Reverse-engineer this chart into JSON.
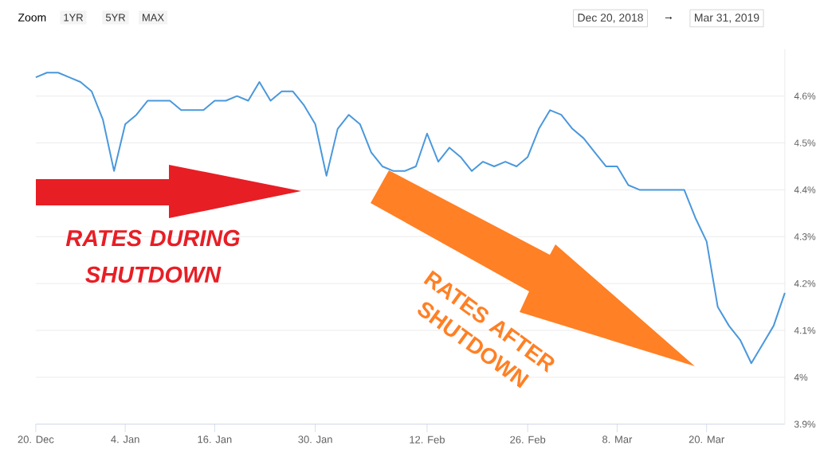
{
  "chart_data": {
    "type": "line",
    "categories": [
      "20. Dec",
      null,
      null,
      null,
      null,
      null,
      null,
      null,
      "4. Jan",
      null,
      null,
      null,
      null,
      null,
      null,
      null,
      "16. Jan",
      null,
      null,
      null,
      null,
      null,
      null,
      null,
      null,
      "30. Jan",
      null,
      null,
      null,
      null,
      null,
      null,
      null,
      null,
      null,
      "12. Feb",
      null,
      null,
      null,
      null,
      null,
      null,
      null,
      null,
      "26. Feb",
      null,
      null,
      null,
      null,
      null,
      null,
      null,
      "8. Mar",
      null,
      null,
      null,
      null,
      null,
      null,
      null,
      "20. Mar",
      null,
      null,
      null,
      null,
      null,
      null,
      null
    ],
    "series": [
      {
        "color": "#4a98dc",
        "values": [
          4.64,
          4.65,
          4.65,
          4.64,
          4.63,
          4.61,
          4.55,
          4.44,
          4.54,
          4.56,
          4.59,
          4.59,
          4.59,
          4.57,
          4.57,
          4.57,
          4.59,
          4.59,
          4.6,
          4.59,
          4.63,
          4.59,
          4.61,
          4.61,
          4.58,
          4.54,
          4.43,
          4.53,
          4.56,
          4.54,
          4.48,
          4.45,
          4.44,
          4.44,
          4.45,
          4.52,
          4.46,
          4.49,
          4.47,
          4.44,
          4.46,
          4.45,
          4.46,
          4.45,
          4.47,
          4.53,
          4.57,
          4.56,
          4.53,
          4.51,
          4.48,
          4.45,
          4.45,
          4.41,
          4.4,
          4.4,
          4.4,
          4.4,
          4.4,
          4.34,
          4.29,
          4.15,
          4.11,
          4.08,
          4.03,
          4.07,
          4.11,
          4.18
        ]
      }
    ],
    "ylim": [
      3.9,
      4.7
    ],
    "yticks": [
      {
        "value": 3.9,
        "label": "3.9%"
      },
      {
        "value": 4.0,
        "label": "4%"
      },
      {
        "value": 4.1,
        "label": "4.1%"
      },
      {
        "value": 4.2,
        "label": "4.2%"
      },
      {
        "value": 4.3,
        "label": "4.3%"
      },
      {
        "value": 4.4,
        "label": "4.4%"
      },
      {
        "value": 4.5,
        "label": "4.5%"
      },
      {
        "value": 4.6,
        "label": "4.6%"
      }
    ],
    "grid": "y",
    "annotations": [
      "Zoom",
      "1YR",
      "5YR",
      "MAX",
      "Dec 20, 2018",
      "→",
      "Mar 31, 2019",
      "RATES DURING SHUTDOWN",
      "RATES AFTER SHUTDOWN"
    ]
  }
}
